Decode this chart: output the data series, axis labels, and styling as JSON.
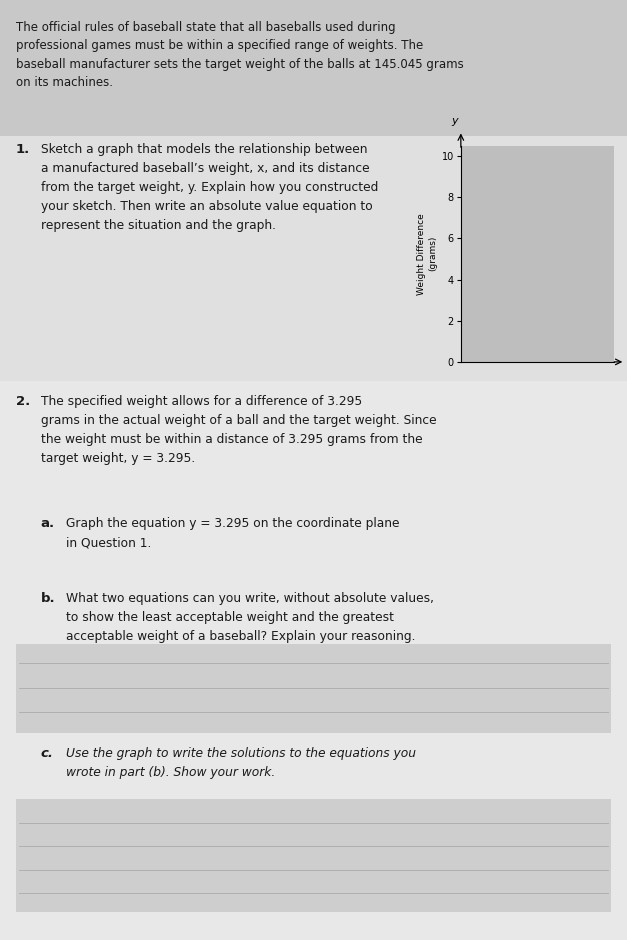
{
  "page_bg": "#d9d9d9",
  "intro_bg": "#c8c8c8",
  "q1_bg": "#e0e0e0",
  "q2_bg": "#e8e8e8",
  "ans_bg": "#cecece",
  "intro_text": "The official rules of baseball state that all baseballs used during\nprofessional games must be within a specified range of weights. The\nbaseball manufacturer sets the target weight of the balls at 145.045 grams\non its machines.",
  "q1_label": "1.",
  "q1_text": "Sketch a graph that models the relationship between\na manufactured baseball’s weight, x, and its distance\nfrom the target weight, y. Explain how you constructed\nyour sketch. Then write an absolute value equation to\nrepresent the situation and the graph.",
  "q2_label": "2.",
  "q2_text": "The specified weight allows for a difference of 3.295\ngrams in the actual weight of a ball and the target weight. Since\nthe weight must be within a distance of 3.295 grams from the\ntarget weight, y = 3.295.",
  "qa_label": "a.",
  "qa_text": "Graph the equation y = 3.295 on the coordinate plane\nin Question 1.",
  "qb_label": "b.",
  "qb_text": "What two equations can you write, without absolute values,\nto show the least acceptable weight and the greatest\nacceptable weight of a baseball? Explain your reasoning.",
  "qc_label": "c.",
  "qc_text": "Use the graph to write the solutions to the equations you\nwrote in part (b). Show your work.",
  "ylabel": "Weight Difference\n(grams)",
  "yticks": [
    0,
    2,
    4,
    6,
    8,
    10
  ],
  "ylim": [
    0,
    10.5
  ],
  "chart_bg": "#bebebe",
  "answer_line_color": "#b0b0b0",
  "text_color": "#1a1a1a"
}
